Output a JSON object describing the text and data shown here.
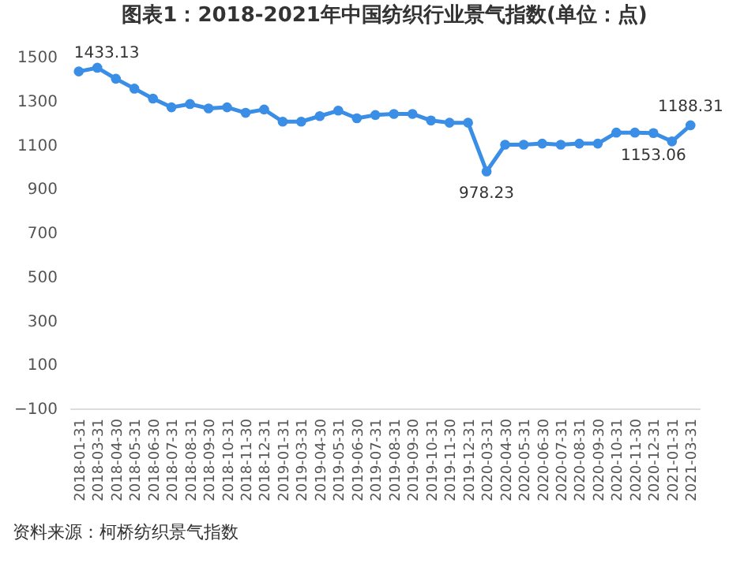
{
  "chart_data": {
    "type": "line",
    "title": "图表1：2018-2021年中国纺织行业景气指数(单位：点)",
    "categories": [
      "2018-01-31",
      "2018-03-31",
      "2018-04-30",
      "2018-05-31",
      "2018-06-30",
      "2018-07-31",
      "2018-08-31",
      "2018-09-30",
      "2018-10-31",
      "2018-11-30",
      "2018-12-31",
      "2019-01-31",
      "2019-03-31",
      "2019-04-30",
      "2019-05-31",
      "2019-06-30",
      "2019-07-31",
      "2019-08-31",
      "2019-09-30",
      "2019-10-31",
      "2019-11-30",
      "2019-12-31",
      "2020-03-31",
      "2020-04-30",
      "2020-05-31",
      "2020-06-30",
      "2020-07-31",
      "2020-08-31",
      "2020-09-30",
      "2020-10-31",
      "2020-11-30",
      "2020-12-31",
      "2021-01-31",
      "2021-03-31"
    ],
    "series": [
      {
        "color": "#3a8ee6",
        "values": [
          1433.13,
          1450,
          1400,
          1355,
          1310,
          1270,
          1285,
          1265,
          1270,
          1245,
          1260,
          1205,
          1205,
          1230,
          1255,
          1220,
          1235,
          1240,
          1240,
          1210,
          1200,
          1200,
          978.23,
          1100,
          1100,
          1105,
          1100,
          1105,
          1105,
          1155,
          1155,
          1153.06,
          1115,
          1188.31
        ],
        "value_labels": [
          "1433.13",
          null,
          null,
          null,
          null,
          null,
          null,
          null,
          null,
          null,
          null,
          null,
          null,
          null,
          null,
          null,
          null,
          null,
          null,
          null,
          null,
          null,
          "978.23",
          null,
          null,
          null,
          null,
          null,
          null,
          null,
          null,
          "1153.06",
          null,
          "1188.31"
        ]
      }
    ],
    "ylim": [
      -100,
      1500
    ],
    "yticks": [
      -100,
      100,
      300,
      500,
      700,
      900,
      1100,
      1300,
      1500
    ],
    "grid": false,
    "marker": "circle",
    "line_style": "solid",
    "annotations": [
      "资料来源：柯桥纺织景气指数"
    ]
  }
}
